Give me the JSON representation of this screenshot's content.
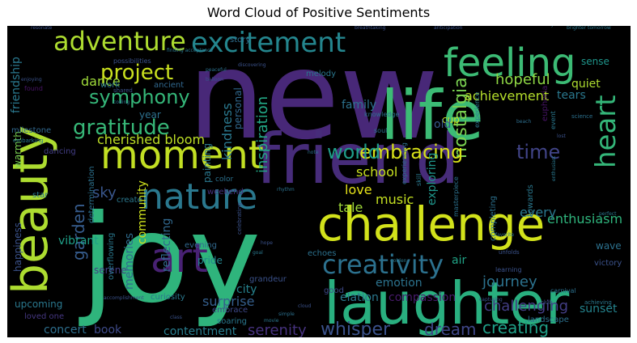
{
  "chart_data": {
    "type": "wordcloud",
    "title": "Word Cloud of Positive Sentiments",
    "background": "#000000",
    "colormap": [
      "#440154",
      "#3b528b",
      "#21918c",
      "#5ec962",
      "#fde725"
    ],
    "words": [
      {
        "text": "new",
        "color": "#482878",
        "weight": 1.0
      },
      {
        "text": "joy",
        "color": "#2fb47c",
        "weight": 0.95
      },
      {
        "text": "friend",
        "color": "#472c7a",
        "weight": 0.7
      },
      {
        "text": "life",
        "color": "#3cbb75",
        "weight": 0.65
      },
      {
        "text": "laughter",
        "color": "#29af7f",
        "weight": 0.6
      },
      {
        "text": "beauty",
        "color": "#addc30",
        "weight": 0.6
      },
      {
        "text": "challenge",
        "color": "#d2e21b",
        "weight": 0.55
      },
      {
        "text": "moment",
        "color": "#c2df23",
        "weight": 0.5
      },
      {
        "text": "nature",
        "color": "#2a788e",
        "weight": 0.5
      },
      {
        "text": "feeling",
        "color": "#3cbb75",
        "weight": 0.48
      },
      {
        "text": "excitement",
        "color": "#24868e",
        "weight": 0.45
      },
      {
        "text": "adventure",
        "color": "#addc30",
        "weight": 0.42
      },
      {
        "text": "art",
        "color": "#482173",
        "weight": 0.45
      },
      {
        "text": "heart",
        "color": "#34b679",
        "weight": 0.4
      },
      {
        "text": "creativity",
        "color": "#2c718e",
        "weight": 0.4
      },
      {
        "text": "gratitude",
        "color": "#37b878",
        "weight": 0.35
      },
      {
        "text": "nostalgia",
        "color": "#7ad151",
        "weight": 0.3
      },
      {
        "text": "embracing",
        "color": "#d8e219",
        "weight": 0.33
      },
      {
        "text": "symphony",
        "color": "#35b779",
        "weight": 0.33
      },
      {
        "text": "project",
        "color": "#cae11f",
        "weight": 0.33
      },
      {
        "text": "time",
        "color": "#414487",
        "weight": 0.33
      },
      {
        "text": "world",
        "color": "#1f9e89",
        "weight": 0.3
      },
      {
        "text": "beach",
        "color": "#2e6f8e",
        "weight": 0.3
      },
      {
        "text": "garden",
        "color": "#365c8d",
        "weight": 0.28
      },
      {
        "text": "inspiration",
        "color": "#22a785",
        "weight": 0.25
      },
      {
        "text": "kindness",
        "color": "#2a788e",
        "weight": 0.22
      },
      {
        "text": "whisper",
        "color": "#3b528b",
        "weight": 0.28
      },
      {
        "text": "dream",
        "color": "#3f4788",
        "weight": 0.26
      },
      {
        "text": "creating",
        "color": "#1fa088",
        "weight": 0.26
      },
      {
        "text": "journey",
        "color": "#2c728e",
        "weight": 0.24
      },
      {
        "text": "challenging",
        "color": "#433e85",
        "weight": 0.24
      },
      {
        "text": "enthusiasm",
        "color": "#2fb47c",
        "weight": 0.22
      },
      {
        "text": "hopeful",
        "color": "#8fd744",
        "weight": 0.22
      },
      {
        "text": "achievement",
        "color": "#b5de2b",
        "weight": 0.2
      },
      {
        "text": "cherished bloom",
        "color": "#bddf26",
        "weight": 0.2
      },
      {
        "text": "serenity",
        "color": "#46327e",
        "weight": 0.22
      },
      {
        "text": "contentment",
        "color": "#287d8e",
        "weight": 0.2
      },
      {
        "text": "dance",
        "color": "#9fda3a",
        "weight": 0.2
      },
      {
        "text": "friendship",
        "color": "#2a788e",
        "weight": 0.2
      },
      {
        "text": "sky",
        "color": "#39568c",
        "weight": 0.22
      },
      {
        "text": "school",
        "color": "#c8e020",
        "weight": 0.2
      },
      {
        "text": "love",
        "color": "#e7e419",
        "weight": 0.2
      },
      {
        "text": "music",
        "color": "#c5e021",
        "weight": 0.2
      },
      {
        "text": "tale",
        "color": "#a0da39",
        "weight": 0.2
      },
      {
        "text": "emotion",
        "color": "#2c738e",
        "weight": 0.18
      },
      {
        "text": "elation",
        "color": "#2a788e",
        "weight": 0.18
      },
      {
        "text": "compassion",
        "color": "#481a6c",
        "weight": 0.18
      },
      {
        "text": "sunset",
        "color": "#25848e",
        "weight": 0.18
      },
      {
        "text": "surprise",
        "color": "#355f8d",
        "weight": 0.18
      },
      {
        "text": "family",
        "color": "#2c728e",
        "weight": 0.16
      },
      {
        "text": "exploring",
        "color": "#1f968b",
        "weight": 0.16
      },
      {
        "text": "memories",
        "color": "#2f6c8e",
        "weight": 0.16
      },
      {
        "text": "community",
        "color": "#cde11d",
        "weight": 0.16
      },
      {
        "text": "reflecting",
        "color": "#31688e",
        "weight": 0.16
      },
      {
        "text": "every",
        "color": "#2a788e",
        "weight": 0.16
      },
      {
        "text": "concert",
        "color": "#2e6f8e",
        "weight": 0.14
      },
      {
        "text": "day",
        "color": "#21918c",
        "weight": 0.16
      },
      {
        "text": "book",
        "color": "#3e4a89",
        "weight": 0.14
      },
      {
        "text": "city",
        "color": "#26828e",
        "weight": 0.14
      },
      {
        "text": "quiet",
        "color": "#addc30",
        "weight": 0.14
      },
      {
        "text": "tears",
        "color": "#2a788e",
        "weight": 0.14
      },
      {
        "text": "sense",
        "color": "#1f958b",
        "weight": 0.12
      },
      {
        "text": "cup",
        "color": "#c2df23",
        "weight": 0.12
      },
      {
        "text": "old",
        "color": "#38588c",
        "weight": 0.12
      },
      {
        "text": "vibrant",
        "color": "#1fa088",
        "weight": 0.12
      },
      {
        "text": "warmth",
        "color": "#7ad151",
        "weight": 0.12
      },
      {
        "text": "happiness",
        "color": "#3b528b",
        "weight": 0.12
      },
      {
        "text": "upcoming",
        "color": "#2a788e",
        "weight": 0.12
      },
      {
        "text": "serene",
        "color": "#433e85",
        "weight": 0.12
      },
      {
        "text": "air",
        "color": "#20a386",
        "weight": 0.12
      },
      {
        "text": "wave",
        "color": "#2c718e",
        "weight": 0.1
      },
      {
        "text": "pride",
        "color": "#24868e",
        "weight": 0.1
      },
      {
        "text": "personal",
        "color": "#31688e",
        "weight": 0.1
      },
      {
        "text": "painting",
        "color": "#2a788e",
        "weight": 0.1
      },
      {
        "text": "year",
        "color": "#2d708e",
        "weight": 0.1
      },
      {
        "text": "work",
        "color": "#2a788e",
        "weight": 0.09
      },
      {
        "text": "melody",
        "color": "#2a778e",
        "weight": 0.09
      },
      {
        "text": "story",
        "color": "#2e6e8e",
        "weight": 0.09
      },
      {
        "text": "milestone",
        "color": "#31688e",
        "weight": 0.09
      },
      {
        "text": "star",
        "color": "#2a788e",
        "weight": 0.08
      },
      {
        "text": "evening",
        "color": "#31688e",
        "weight": 0.08
      },
      {
        "text": "curiosity",
        "color": "#2a788e",
        "weight": 0.09
      },
      {
        "text": "embrace",
        "color": "#3e4989",
        "weight": 0.09
      },
      {
        "text": "soaring",
        "color": "#2a788e",
        "weight": 0.08
      },
      {
        "text": "echoes",
        "color": "#2c718e",
        "weight": 0.08
      },
      {
        "text": "good",
        "color": "#3e4989",
        "weight": 0.08
      },
      {
        "text": "create",
        "color": "#2a788e",
        "weight": 0.08
      },
      {
        "text": "grandeur",
        "color": "#3b528b",
        "weight": 0.08
      },
      {
        "text": "loved one",
        "color": "#453781",
        "weight": 0.08
      },
      {
        "text": "landscape",
        "color": "#2c718e",
        "weight": 0.07
      },
      {
        "text": "victory",
        "color": "#3b528b",
        "weight": 0.07
      },
      {
        "text": "ancient",
        "color": "#31688e",
        "weight": 0.07
      },
      {
        "text": "determination",
        "color": "#2c718e",
        "weight": 0.07
      },
      {
        "text": "overflowing",
        "color": "#2a788e",
        "weight": 0.07
      },
      {
        "text": "completing",
        "color": "#2c718e",
        "weight": 0.07
      },
      {
        "text": "dancing",
        "color": "#433e85",
        "weight": 0.07
      },
      {
        "text": "towards",
        "color": "#2a788e",
        "weight": 0.07
      },
      {
        "text": "euphoria",
        "color": "#481467",
        "weight": 0.07
      },
      {
        "text": "knowledge",
        "color": "#2c718e",
        "weight": 0.07
      },
      {
        "text": "experience",
        "color": "#2a788e",
        "weight": 0.06
      },
      {
        "text": "experiencing",
        "color": "#2c718e",
        "weight": 0.06
      },
      {
        "text": "possibilities",
        "color": "#3b528b",
        "weight": 0.06
      },
      {
        "text": "weekend",
        "color": "#46327e",
        "weight": 0.06
      },
      {
        "text": "color",
        "color": "#2c718e",
        "weight": 0.06
      },
      {
        "text": "skill",
        "color": "#2a788e",
        "weight": 0.06
      },
      {
        "text": "masterpiece",
        "color": "#2c718e",
        "weight": 0.06
      },
      {
        "text": "learning",
        "color": "#3b528b",
        "weight": 0.06
      },
      {
        "text": "accomplishment",
        "color": "#3b528b",
        "weight": 0.05
      },
      {
        "text": "finding acceptance",
        "color": "#2a788e",
        "weight": 0.05
      },
      {
        "text": "found",
        "color": "#481467",
        "weight": 0.05
      },
      {
        "text": "soul",
        "color": "#2c718e",
        "weight": 0.05
      },
      {
        "text": "event",
        "color": "#2a788e",
        "weight": 0.05
      },
      {
        "text": "science",
        "color": "#2c718e",
        "weight": 0.05
      },
      {
        "text": "celebrating",
        "color": "#3b528b",
        "weight": 0.05
      },
      {
        "text": "enjoying",
        "color": "#3b528b",
        "weight": 0.05
      },
      {
        "text": "embarking",
        "color": "#2a788e",
        "weight": 0.05
      },
      {
        "text": "shared",
        "color": "#3b528b",
        "weight": 0.05
      },
      {
        "text": "coding",
        "color": "#2c718e",
        "weight": 0.04
      },
      {
        "text": "discovering",
        "color": "#3b528b",
        "weight": 0.04
      },
      {
        "text": "successfully",
        "color": "#2a788e",
        "weight": 0.04
      },
      {
        "text": "brighter tomorrow",
        "color": "#2a788e",
        "weight": 0.04
      },
      {
        "text": "anticipation",
        "color": "#3b528b",
        "weight": 0.04
      },
      {
        "text": "breathtaking",
        "color": "#3b528b",
        "weight": 0.04
      },
      {
        "text": "resonate",
        "color": "#3b528b",
        "weight": 0.04
      },
      {
        "text": "carnival",
        "color": "#2c718e",
        "weight": 0.04
      },
      {
        "text": "achieving",
        "color": "#2a788e",
        "weight": 0.04
      },
      {
        "text": "club",
        "color": "#3b528b",
        "weight": 0.04
      },
      {
        "text": "favorite",
        "color": "#2c718e",
        "weight": 0.04
      },
      {
        "text": "unfolds",
        "color": "#3b528b",
        "weight": 0.04
      },
      {
        "text": "goal",
        "color": "#2a788e",
        "weight": 0.04
      },
      {
        "text": "hope",
        "color": "#3b528b",
        "weight": 0.04
      },
      {
        "text": "rhythm",
        "color": "#2c718e",
        "weight": 0.04
      },
      {
        "text": "perfect",
        "color": "#2a788e",
        "weight": 0.04
      },
      {
        "text": "cloud",
        "color": "#3b528b",
        "weight": 0.04
      },
      {
        "text": "simple",
        "color": "#2c718e",
        "weight": 0.03
      },
      {
        "text": "class",
        "color": "#3b528b",
        "weight": 0.03
      },
      {
        "text": "movie",
        "color": "#2a788e",
        "weight": 0.03
      },
      {
        "text": "peaceful",
        "color": "#2c718e",
        "weight": 0.03
      },
      {
        "text": "balloon",
        "color": "#3b528b",
        "weight": 0.03
      },
      {
        "text": "capturing",
        "color": "#3b528b",
        "weight": 0.03
      },
      {
        "text": "golden",
        "color": "#2a788e",
        "weight": 0.03
      },
      {
        "text": "note",
        "color": "#2c718e",
        "weight": 0.03
      },
      {
        "text": "lost",
        "color": "#3b528b",
        "weight": 0.03
      },
      {
        "text": "enthusiast",
        "color": "#2a788e",
        "weight": 0.03
      }
    ]
  }
}
